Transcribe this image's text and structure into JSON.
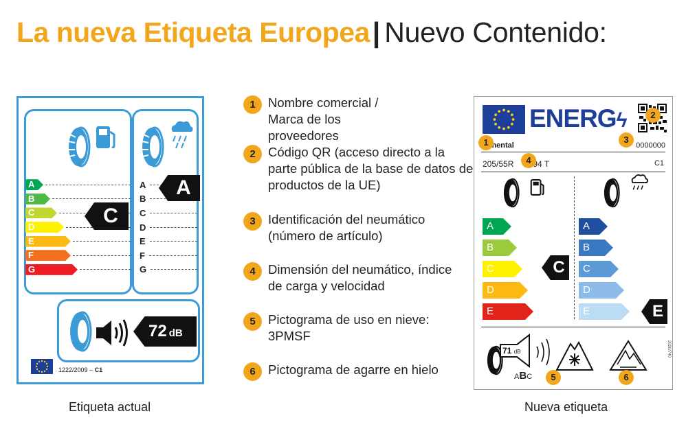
{
  "title": {
    "highlight": "La nueva Etiqueta Europea",
    "separator": "|",
    "rest": "Nuevo Contenido:"
  },
  "current_label": {
    "caption": "Etiqueta actual",
    "fuel_classes": [
      "A",
      "B",
      "C",
      "D",
      "E",
      "F",
      "G"
    ],
    "fuel_class_colors": [
      "#00a651",
      "#50b848",
      "#bfd730",
      "#fff200",
      "#fdb913",
      "#f37021",
      "#ed1c24"
    ],
    "fuel_rating": "C",
    "wet_classes": [
      "A",
      "B",
      "C",
      "D",
      "E",
      "F",
      "G"
    ],
    "wet_rating": "A",
    "noise_value": "72",
    "noise_unit": "dB",
    "regulation_prefix": "1222/2009 –",
    "regulation_class": "C1"
  },
  "legend": [
    {
      "number": "1",
      "text": "Nombre comercial / Marca de los proveedores"
    },
    {
      "number": "2",
      "text": "Código QR (acceso directo a la parte pública de la base de datos de productos de la UE)"
    },
    {
      "number": "3",
      "text": "Identificación del neumático (número de artículo)"
    },
    {
      "number": "4",
      "text": "Dimensión del neumático, índice de carga y velocidad"
    },
    {
      "number": "5",
      "text": "Pictograma de uso en nieve: 3PMSF"
    },
    {
      "number": "6",
      "text": "Pictograma de agarre en hielo"
    }
  ],
  "new_label": {
    "caption": "Nueva etiqueta",
    "energy_text": "ENERG",
    "brand": "ntinental",
    "article_number": "0000000",
    "dimension_left": "205/55R",
    "dimension_right": "94 T",
    "tire_class": "C1",
    "fuel_classes": [
      "A",
      "B",
      "C",
      "D",
      "E"
    ],
    "fuel_class_colors": [
      "#00a651",
      "#9bca3c",
      "#fff200",
      "#fdb913",
      "#e2231a"
    ],
    "fuel_rating": "C",
    "wet_classes": [
      "A",
      "B",
      "C",
      "D",
      "E"
    ],
    "wet_class_colors": [
      "#1f4e9e",
      "#3a78c2",
      "#5c9ad6",
      "#8bbbe6",
      "#bcdcf4"
    ],
    "wet_rating": "E",
    "noise_value": "71",
    "noise_unit": "dB",
    "noise_class_small_a": "A",
    "noise_class_bold": "B",
    "noise_class_small_c": "C",
    "regulation_code": "2020/740",
    "markers": [
      "1",
      "2",
      "3",
      "4",
      "5",
      "6"
    ]
  }
}
